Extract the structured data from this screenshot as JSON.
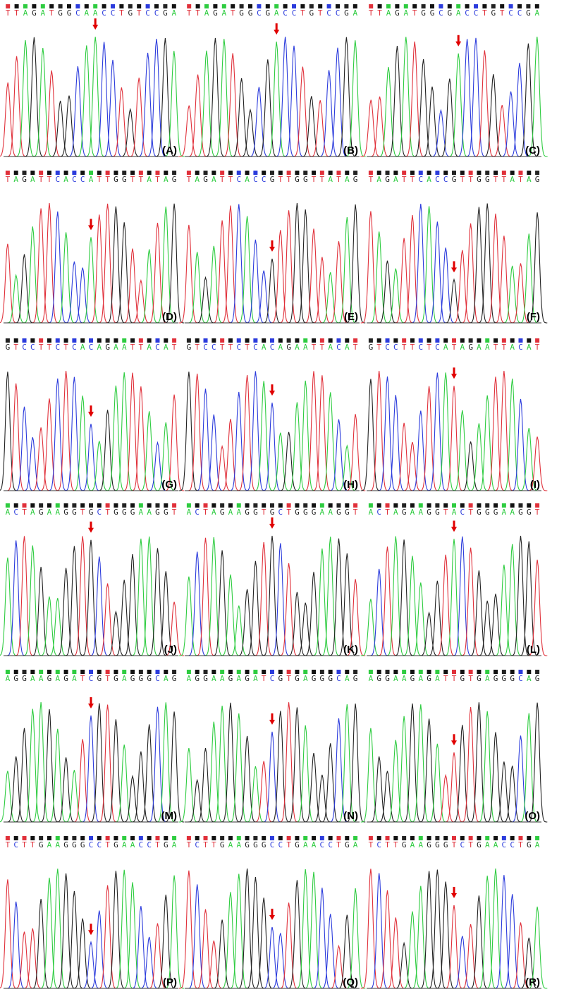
{
  "panels": [
    {
      "label": "(A)",
      "sequence": "TTAGATGGCAACCTGTCCGA"
    },
    {
      "label": "(B)",
      "sequence": "TTAGATGGCGACCTGTCCGA"
    },
    {
      "label": "(C)",
      "sequence": "TTAGATGGCGACCTGTCCGA"
    },
    {
      "label": "(D)",
      "sequence": "TAGATTCACCATTGGTTATAG"
    },
    {
      "label": "(E)",
      "sequence": "TAGATTCACCGTTGGTTATAG"
    },
    {
      "label": "(F)",
      "sequence": "TAGATTCACCGTTGGTTATAG"
    },
    {
      "label": "(G)",
      "sequence": "GTCCTTCTCACAGAATTACAT"
    },
    {
      "label": "(H)",
      "sequence": "GTCCTTCTCACAGAATTACAT"
    },
    {
      "label": "(I)",
      "sequence": "GTCCTTCTCATAGAATTACAT"
    },
    {
      "label": "(J)",
      "sequence": "ACTAGAAGGTGCTGGGAAGGT"
    },
    {
      "label": "(K)",
      "sequence": "ACTAGAAGGTGCTGGGAAGGT"
    },
    {
      "label": "(L)",
      "sequence": "ACTAGAAGGTACTGGGAAGGT"
    },
    {
      "label": "(M)",
      "sequence": "AGGAAGAGATCGTGAGGGCAG"
    },
    {
      "label": "(N)",
      "sequence": "AGGAAGAGATCGTGAGGGCAG"
    },
    {
      "label": "(O)",
      "sequence": "AGGAAGAGATTGTGAGGGCAG"
    },
    {
      "label": "(P)",
      "sequence": "TCTTGAAGGGCCTGAACCTGA"
    },
    {
      "label": "(Q)",
      "sequence": "TCTTGAAGGGCCTGAACCTGA"
    },
    {
      "label": "(R)",
      "sequence": "TCTTGAAGGGTCTGAACCTGA"
    }
  ]
}
